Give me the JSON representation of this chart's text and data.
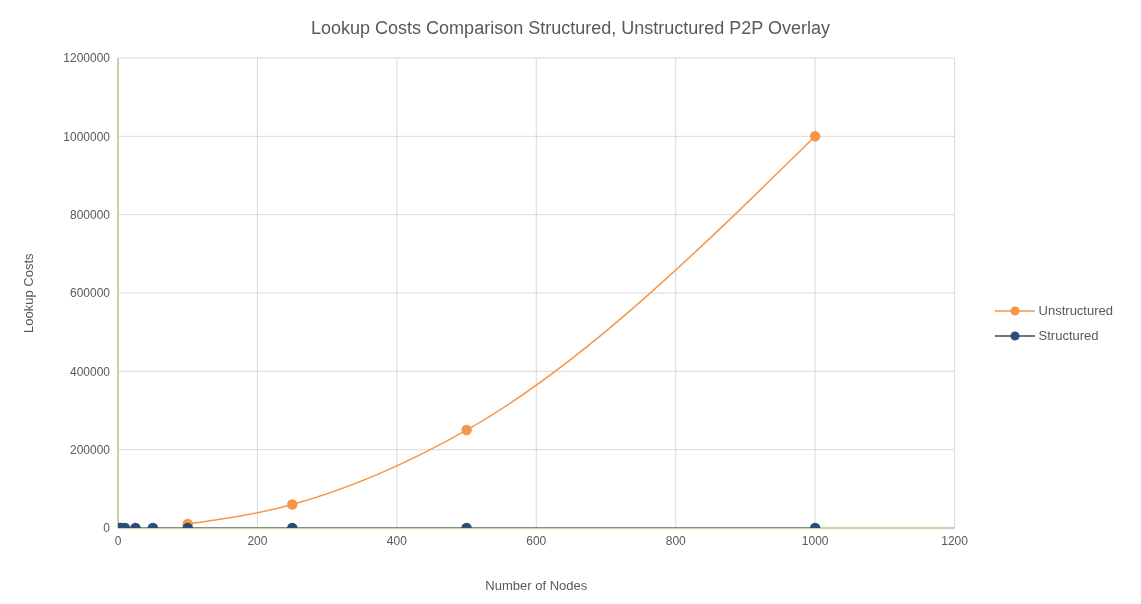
{
  "chart_data": {
    "type": "line",
    "title": "Lookup Costs Comparison Structured, Unstructured P2P Overlay",
    "xlabel": "Number of Nodes",
    "ylabel": "Lookup Costs",
    "x": [
      2,
      5,
      10,
      25,
      50,
      100,
      250,
      500,
      1000
    ],
    "series": [
      {
        "name": "Unstructured",
        "color": "#f79646",
        "values": [
          null,
          null,
          null,
          null,
          null,
          10000,
          60000,
          250000,
          1000000
        ]
      },
      {
        "name": "Structured",
        "color": "#2c4d75",
        "values": [
          0,
          0,
          0,
          0,
          0,
          0,
          0,
          0,
          0
        ]
      }
    ],
    "xlim": [
      0,
      1200
    ],
    "xticks": [
      0,
      200,
      400,
      600,
      800,
      1000,
      1200
    ],
    "ylim": [
      0,
      1200000
    ],
    "yticks": [
      0,
      200000,
      400000,
      600000,
      800000,
      1000000,
      1200000
    ],
    "grid": true,
    "legend": "right",
    "marker": "circle",
    "line_style": "solid"
  }
}
